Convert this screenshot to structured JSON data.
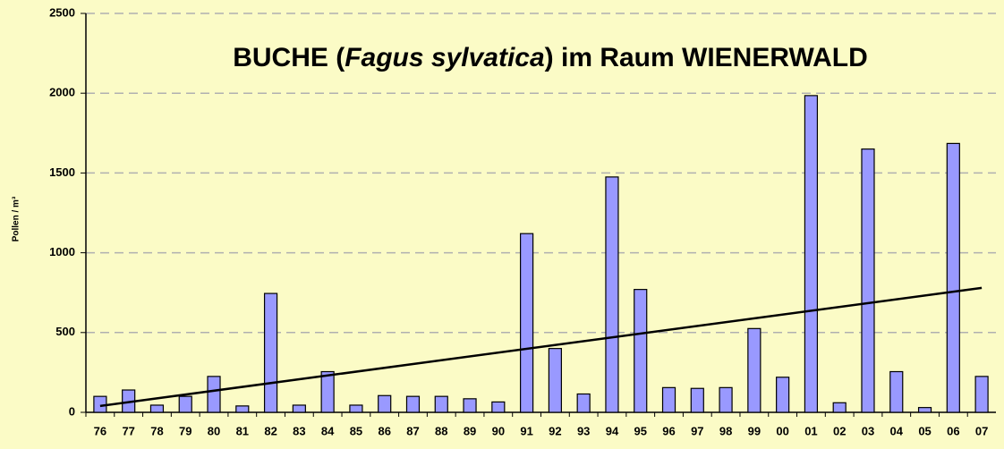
{
  "chart_data": {
    "type": "bar",
    "title": [
      "BUCHE (",
      "Fagus sylvatica",
      ") im Raum WIENERWALD"
    ],
    "y_label": "Pollen / m³",
    "categories": [
      "76",
      "77",
      "78",
      "79",
      "80",
      "81",
      "82",
      "83",
      "84",
      "85",
      "86",
      "87",
      "88",
      "89",
      "90",
      "91",
      "92",
      "93",
      "94",
      "95",
      "96",
      "97",
      "98",
      "99",
      "00",
      "01",
      "02",
      "03",
      "04",
      "05",
      "06",
      "07"
    ],
    "values": [
      100,
      140,
      45,
      100,
      225,
      40,
      745,
      45,
      255,
      45,
      105,
      100,
      100,
      85,
      65,
      1120,
      400,
      115,
      1475,
      770,
      155,
      150,
      155,
      525,
      220,
      1985,
      60,
      1650,
      255,
      30,
      1685,
      225
    ],
    "color": "#9999ff",
    "trendline": [
      40,
      780
    ],
    "ylim": [
      0,
      2500
    ],
    "yticks": [
      0,
      500,
      1000,
      1500,
      2000,
      2500
    ],
    "grid": true
  }
}
